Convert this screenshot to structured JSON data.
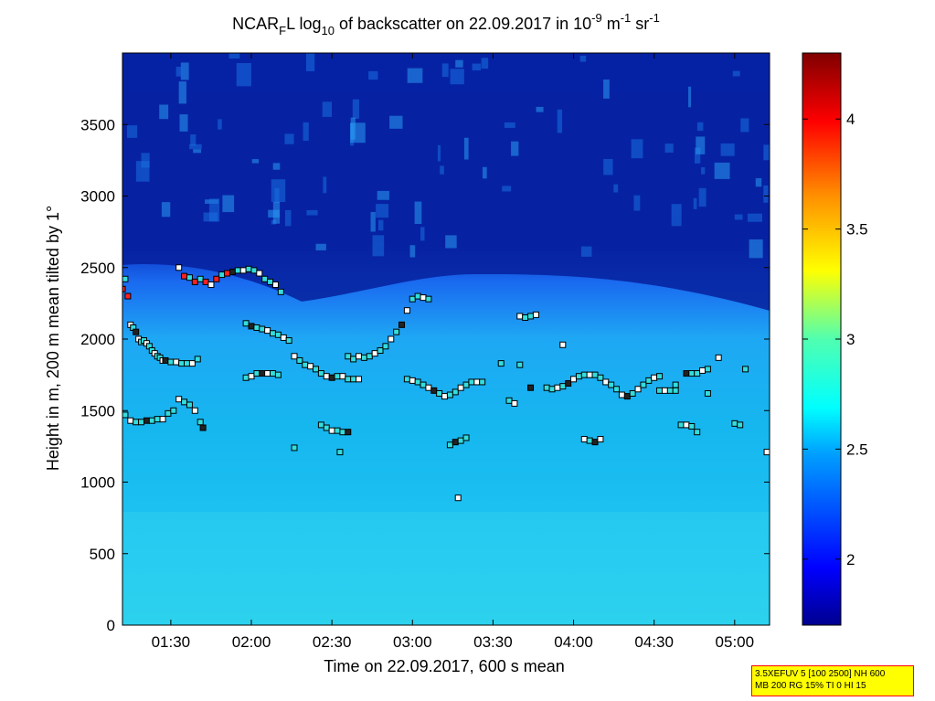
{
  "chart_data": {
    "type": "heatmap",
    "title": {
      "prefix": "NCAR",
      "sub_f": "F",
      "mid": "L log",
      "sub_10": "10",
      "rest": " of backscatter on 22.09.2017 in 10",
      "sup_9": "-9",
      "unit_m": " m",
      "sup_m": "-1",
      "unit_sr": " sr",
      "sup_sr": "-1"
    },
    "xlabel": "Time on 22.09.2017, 600 s mean",
    "ylabel": "Height in m, 200 m mean tilted by 1°",
    "x_ticks": [
      "01:30",
      "02:00",
      "02:30",
      "03:00",
      "03:30",
      "04:00",
      "04:30",
      "05:00"
    ],
    "x_range": [
      "01:12",
      "05:13"
    ],
    "y_ticks": [
      0,
      500,
      1000,
      1500,
      2000,
      2500,
      3000,
      3500
    ],
    "ylim": [
      0,
      4000
    ],
    "colorbar": {
      "ticks": [
        2,
        2.5,
        3,
        3.5,
        4
      ],
      "range": [
        1.7,
        4.3
      ]
    },
    "cloud_base_series": {
      "description_colors": [
        "#ffffff",
        "#33dddd",
        "#ff2020",
        "#222222"
      ],
      "points": [
        [
          "01:12",
          2350
        ],
        [
          "01:13",
          2420
        ],
        [
          "01:14",
          2300
        ],
        [
          "01:15",
          2100
        ],
        [
          "01:16",
          2080
        ],
        [
          "01:17",
          2050
        ],
        [
          "01:18",
          2000
        ],
        [
          "01:19",
          1980
        ],
        [
          "01:20",
          1990
        ],
        [
          "01:21",
          1970
        ],
        [
          "01:22",
          1950
        ],
        [
          "01:23",
          1920
        ],
        [
          "01:24",
          1900
        ],
        [
          "01:25",
          1880
        ],
        [
          "01:26",
          1870
        ],
        [
          "01:27",
          1850
        ],
        [
          "01:28",
          1850
        ],
        [
          "01:30",
          1840
        ],
        [
          "01:32",
          1840
        ],
        [
          "01:34",
          1830
        ],
        [
          "01:36",
          1830
        ],
        [
          "01:38",
          1830
        ],
        [
          "01:40",
          1860
        ],
        [
          "01:13",
          1470
        ],
        [
          "01:15",
          1430
        ],
        [
          "01:17",
          1420
        ],
        [
          "01:19",
          1420
        ],
        [
          "01:21",
          1430
        ],
        [
          "01:23",
          1430
        ],
        [
          "01:25",
          1440
        ],
        [
          "01:27",
          1440
        ],
        [
          "01:29",
          1480
        ],
        [
          "01:31",
          1500
        ],
        [
          "01:33",
          1580
        ],
        [
          "01:35",
          1560
        ],
        [
          "01:37",
          1540
        ],
        [
          "01:39",
          1500
        ],
        [
          "01:41",
          1420
        ],
        [
          "01:42",
          1380
        ],
        [
          "01:33",
          2500
        ],
        [
          "01:35",
          2440
        ],
        [
          "01:37",
          2430
        ],
        [
          "01:39",
          2400
        ],
        [
          "01:41",
          2420
        ],
        [
          "01:43",
          2400
        ],
        [
          "01:45",
          2380
        ],
        [
          "01:47",
          2420
        ],
        [
          "01:49",
          2450
        ],
        [
          "01:51",
          2460
        ],
        [
          "01:53",
          2470
        ],
        [
          "01:55",
          2480
        ],
        [
          "01:57",
          2480
        ],
        [
          "01:59",
          2490
        ],
        [
          "02:01",
          2480
        ],
        [
          "02:03",
          2460
        ],
        [
          "02:05",
          2420
        ],
        [
          "02:07",
          2400
        ],
        [
          "02:09",
          2380
        ],
        [
          "02:11",
          2330
        ],
        [
          "01:58",
          2110
        ],
        [
          "02:00",
          2090
        ],
        [
          "02:02",
          2080
        ],
        [
          "02:04",
          2070
        ],
        [
          "02:06",
          2060
        ],
        [
          "02:08",
          2040
        ],
        [
          "02:10",
          2030
        ],
        [
          "02:12",
          2010
        ],
        [
          "02:14",
          1990
        ],
        [
          "01:58",
          1730
        ],
        [
          "02:00",
          1740
        ],
        [
          "02:02",
          1760
        ],
        [
          "02:04",
          1760
        ],
        [
          "02:06",
          1760
        ],
        [
          "02:08",
          1760
        ],
        [
          "02:10",
          1750
        ],
        [
          "02:16",
          1880
        ],
        [
          "02:18",
          1850
        ],
        [
          "02:20",
          1820
        ],
        [
          "02:22",
          1810
        ],
        [
          "02:24",
          1790
        ],
        [
          "02:26",
          1760
        ],
        [
          "02:28",
          1740
        ],
        [
          "02:30",
          1730
        ],
        [
          "02:32",
          1740
        ],
        [
          "02:34",
          1740
        ],
        [
          "02:36",
          1720
        ],
        [
          "02:38",
          1720
        ],
        [
          "02:40",
          1720
        ],
        [
          "02:26",
          1400
        ],
        [
          "02:28",
          1380
        ],
        [
          "02:30",
          1360
        ],
        [
          "02:32",
          1360
        ],
        [
          "02:34",
          1350
        ],
        [
          "02:36",
          1350
        ],
        [
          "02:36",
          1880
        ],
        [
          "02:38",
          1860
        ],
        [
          "02:40",
          1880
        ],
        [
          "02:42",
          1870
        ],
        [
          "02:44",
          1880
        ],
        [
          "02:46",
          1900
        ],
        [
          "02:48",
          1920
        ],
        [
          "02:50",
          1950
        ],
        [
          "02:52",
          2000
        ],
        [
          "02:54",
          2050
        ],
        [
          "02:56",
          2100
        ],
        [
          "02:58",
          2200
        ],
        [
          "03:00",
          2280
        ],
        [
          "03:02",
          2300
        ],
        [
          "03:04",
          2290
        ],
        [
          "03:06",
          2280
        ],
        [
          "02:58",
          1720
        ],
        [
          "03:00",
          1710
        ],
        [
          "03:02",
          1700
        ],
        [
          "03:04",
          1680
        ],
        [
          "03:06",
          1660
        ],
        [
          "03:08",
          1640
        ],
        [
          "03:10",
          1620
        ],
        [
          "03:12",
          1600
        ],
        [
          "03:14",
          1610
        ],
        [
          "03:16",
          1630
        ],
        [
          "03:18",
          1660
        ],
        [
          "03:20",
          1680
        ],
        [
          "03:22",
          1700
        ],
        [
          "03:24",
          1700
        ],
        [
          "03:26",
          1700
        ],
        [
          "03:14",
          1260
        ],
        [
          "03:16",
          1280
        ],
        [
          "03:18",
          1290
        ],
        [
          "03:20",
          1310
        ],
        [
          "03:40",
          2160
        ],
        [
          "03:42",
          2150
        ],
        [
          "03:44",
          2160
        ],
        [
          "03:46",
          2170
        ],
        [
          "03:50",
          1660
        ],
        [
          "03:52",
          1650
        ],
        [
          "03:54",
          1660
        ],
        [
          "03:56",
          1670
        ],
        [
          "03:58",
          1690
        ],
        [
          "04:00",
          1720
        ],
        [
          "04:02",
          1740
        ],
        [
          "04:04",
          1750
        ],
        [
          "04:06",
          1750
        ],
        [
          "04:08",
          1750
        ],
        [
          "04:10",
          1730
        ],
        [
          "04:12",
          1700
        ],
        [
          "04:14",
          1680
        ],
        [
          "04:16",
          1650
        ],
        [
          "04:18",
          1610
        ],
        [
          "04:20",
          1600
        ],
        [
          "04:22",
          1620
        ],
        [
          "04:24",
          1650
        ],
        [
          "04:26",
          1680
        ],
        [
          "04:28",
          1710
        ],
        [
          "04:30",
          1730
        ],
        [
          "04:32",
          1740
        ],
        [
          "04:32",
          1640
        ],
        [
          "04:34",
          1640
        ],
        [
          "04:36",
          1640
        ],
        [
          "04:38",
          1640
        ],
        [
          "04:42",
          1760
        ],
        [
          "04:44",
          1760
        ],
        [
          "04:46",
          1760
        ],
        [
          "04:48",
          1780
        ],
        [
          "04:50",
          1790
        ],
        [
          "04:40",
          1400
        ],
        [
          "04:42",
          1400
        ],
        [
          "04:44",
          1390
        ],
        [
          "04:46",
          1350
        ],
        [
          "04:04",
          1300
        ],
        [
          "04:06",
          1290
        ],
        [
          "04:08",
          1280
        ],
        [
          "04:10",
          1300
        ],
        [
          "05:00",
          1410
        ],
        [
          "05:02",
          1400
        ],
        [
          "05:12",
          1210
        ],
        [
          "02:16",
          1240
        ],
        [
          "02:33",
          1210
        ],
        [
          "03:17",
          890
        ],
        [
          "03:33",
          1830
        ],
        [
          "03:36",
          1570
        ],
        [
          "03:38",
          1550
        ],
        [
          "03:44",
          1660
        ],
        [
          "04:50",
          1620
        ],
        [
          "04:54",
          1870
        ],
        [
          "05:04",
          1790
        ],
        [
          "03:40",
          1820
        ],
        [
          "03:56",
          1960
        ],
        [
          "04:38",
          1680
        ]
      ]
    }
  },
  "legend_box": {
    "line1": "3.5XEFUV 5 [100 2500] NH 600",
    "line2": "MB 200 RG 15% TI 0 HI 15",
    "background": "#ffff00",
    "border": "#ff0000"
  }
}
